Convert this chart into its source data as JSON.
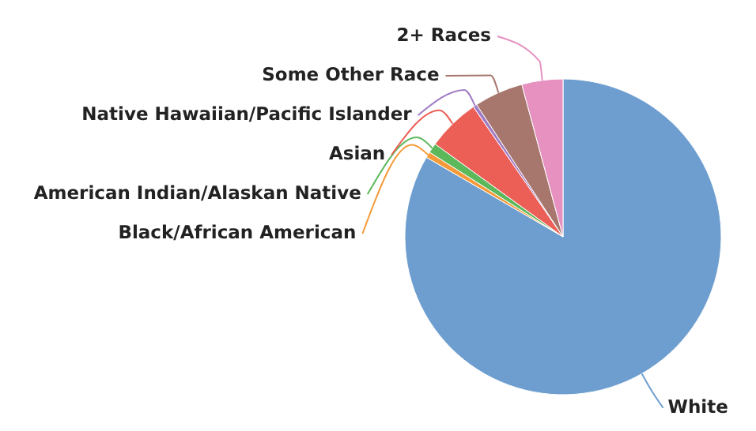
{
  "chart_data": {
    "type": "pie",
    "categories": [
      "White",
      "Black/African American",
      "American Indian/Alaskan Native",
      "Asian",
      "Native Hawaiian/Pacific Islander",
      "Some Other Race",
      "2+ Races"
    ],
    "values": [
      83.4,
      0.6,
      1,
      5.4,
      0.4,
      5,
      4.2
    ],
    "colors": [
      "#6e9ecf",
      "#f59a3a",
      "#5bb85b",
      "#ec5f57",
      "#a07cc5",
      "#a7776e",
      "#e691c0"
    ]
  }
}
